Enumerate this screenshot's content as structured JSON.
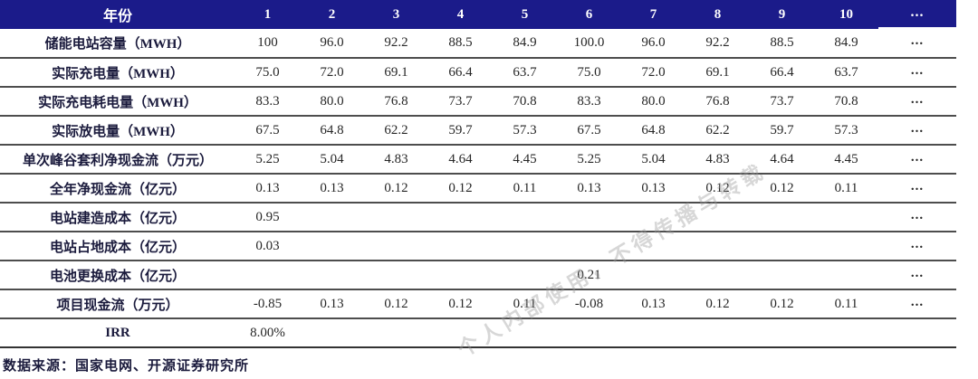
{
  "colors": {
    "header_bg": "#1B1B8A",
    "header_text": "#FFFFFF",
    "row_line": "#4D4D4D",
    "label_text": "#1A1A3C",
    "value_text": "#262626"
  },
  "table": {
    "year_header": "年份",
    "columns": [
      "1",
      "2",
      "3",
      "4",
      "5",
      "6",
      "7",
      "8",
      "9",
      "10",
      "..."
    ],
    "rows": [
      {
        "label": "储能电站容量（MWH）",
        "values": [
          "100",
          "96.0",
          "92.2",
          "88.5",
          "84.9",
          "100.0",
          "96.0",
          "92.2",
          "88.5",
          "84.9",
          "..."
        ]
      },
      {
        "label": "实际充电量（MWH）",
        "values": [
          "75.0",
          "72.0",
          "69.1",
          "66.4",
          "63.7",
          "75.0",
          "72.0",
          "69.1",
          "66.4",
          "63.7",
          "..."
        ]
      },
      {
        "label": "实际充电耗电量（MWH）",
        "values": [
          "83.3",
          "80.0",
          "76.8",
          "73.7",
          "70.8",
          "83.3",
          "80.0",
          "76.8",
          "73.7",
          "70.8",
          "..."
        ]
      },
      {
        "label": "实际放电量（MWH）",
        "values": [
          "67.5",
          "64.8",
          "62.2",
          "59.7",
          "57.3",
          "67.5",
          "64.8",
          "62.2",
          "59.7",
          "57.3",
          "..."
        ]
      },
      {
        "label": "单次峰谷套利净现金流（万元）",
        "values": [
          "5.25",
          "5.04",
          "4.83",
          "4.64",
          "4.45",
          "5.25",
          "5.04",
          "4.83",
          "4.64",
          "4.45",
          "..."
        ]
      },
      {
        "label": "全年净现金流（亿元）",
        "values": [
          "0.13",
          "0.13",
          "0.12",
          "0.12",
          "0.11",
          "0.13",
          "0.13",
          "0.12",
          "0.12",
          "0.11",
          "..."
        ]
      },
      {
        "label": "电站建造成本（亿元）",
        "values": [
          "0.95",
          "",
          "",
          "",
          "",
          "",
          "",
          "",
          "",
          "",
          "..."
        ]
      },
      {
        "label": "电站占地成本（亿元）",
        "values": [
          "0.03",
          "",
          "",
          "",
          "",
          "",
          "",
          "",
          "",
          "",
          "..."
        ]
      },
      {
        "label": "电池更换成本（亿元）",
        "values": [
          "",
          "",
          "",
          "",
          "",
          "0.21",
          "",
          "",
          "",
          "",
          "..."
        ]
      },
      {
        "label": "项目现金流（万元）",
        "values": [
          "-0.85",
          "0.13",
          "0.12",
          "0.12",
          "0.11",
          "-0.08",
          "0.13",
          "0.12",
          "0.12",
          "0.11",
          "..."
        ]
      },
      {
        "label": "IRR",
        "values": [
          "8.00%",
          "",
          "",
          "",
          "",
          "",
          "",
          "",
          "",
          "",
          ""
        ]
      }
    ]
  },
  "footer": {
    "source_text": "数据来源：国家电网、开源证券研究所"
  },
  "watermark": {
    "text": "个人内部使用，不得传播与转载"
  }
}
